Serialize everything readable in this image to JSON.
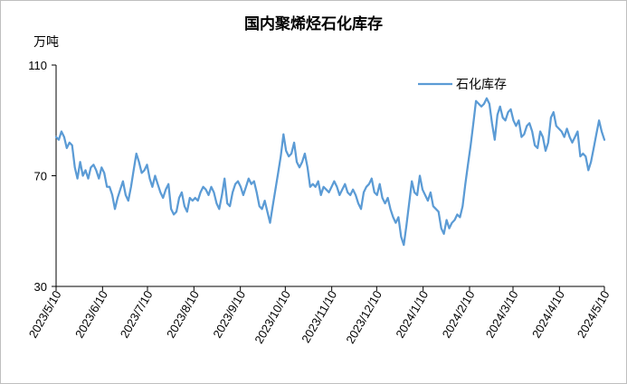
{
  "chart_data": {
    "type": "line",
    "title": "国内聚烯烃石化库存",
    "ylabel": "万吨",
    "ylim": [
      30,
      110
    ],
    "yticks": [
      30,
      70,
      110
    ],
    "grid": false,
    "legend_position": "top-right",
    "x_start": "2023-05-10",
    "x_end": "2024-05-10",
    "xticks": [
      "2023/5/10",
      "2023/6/10",
      "2023/7/10",
      "2023/8/10",
      "2023/9/10",
      "2023/10/10",
      "2023/11/10",
      "2023/12/10",
      "2024/1/10",
      "2024/2/10",
      "2024/3/10",
      "2024/4/10",
      "2024/5/10"
    ],
    "series": [
      {
        "name": "石化库存",
        "color": "#5b9bd5",
        "values": [
          84,
          83,
          86,
          84,
          80,
          82,
          81,
          73,
          69,
          75,
          70,
          72,
          69,
          73,
          74,
          72,
          69,
          73,
          71,
          66,
          66,
          63,
          58,
          62,
          65,
          68,
          63,
          61,
          66,
          72,
          78,
          75,
          71,
          72,
          74,
          69,
          66,
          70,
          67,
          64,
          62,
          65,
          67,
          58,
          56,
          57,
          62,
          64,
          59,
          57,
          62,
          61,
          62,
          61,
          64,
          66,
          65,
          63,
          66,
          64,
          60,
          58,
          63,
          69,
          60,
          59,
          64,
          67,
          68,
          66,
          63,
          66,
          69,
          67,
          68,
          64,
          59,
          58,
          61,
          57,
          53,
          59,
          65,
          71,
          77,
          85,
          79,
          77,
          78,
          82,
          75,
          73,
          75,
          78,
          73,
          66,
          67,
          66,
          68,
          63,
          66,
          65,
          64,
          66,
          68,
          66,
          63,
          65,
          67,
          64,
          63,
          65,
          63,
          60,
          58,
          64,
          66,
          67,
          69,
          64,
          63,
          67,
          62,
          60,
          62,
          58,
          55,
          53,
          55,
          48,
          45,
          52,
          60,
          68,
          64,
          63,
          70,
          65,
          63,
          61,
          64,
          59,
          58,
          57,
          51,
          49,
          54,
          51,
          53,
          54,
          56,
          55,
          59,
          67,
          74,
          81,
          89,
          97,
          96,
          95,
          96,
          98,
          96,
          89,
          83,
          92,
          95,
          91,
          90,
          93,
          94,
          90,
          88,
          90,
          84,
          85,
          88,
          89,
          86,
          81,
          80,
          86,
          84,
          79,
          82,
          91,
          93,
          88,
          87,
          86,
          84,
          87,
          84,
          82,
          84,
          86,
          77,
          78,
          77,
          72,
          75,
          80,
          85,
          90,
          86,
          83
        ]
      }
    ]
  }
}
